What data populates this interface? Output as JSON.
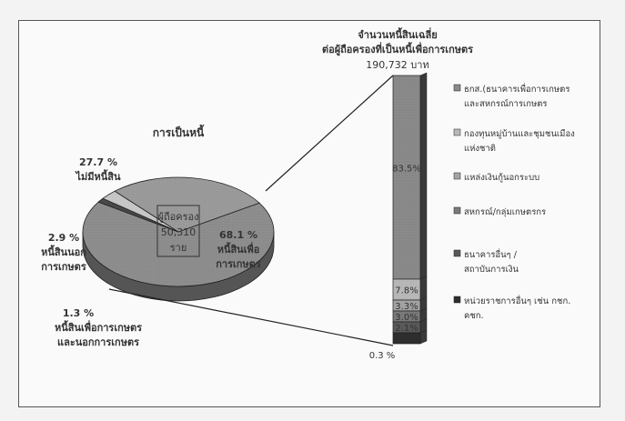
{
  "chart_data": [
    {
      "type": "pie",
      "title": "การเป็นหนี้",
      "center_label": {
        "line1": "ผู้ถือครอง",
        "line2": "50,310",
        "line3": "ราย"
      },
      "slices": [
        {
          "line1": "68.1 %",
          "line2": "หนี้สินเพื่อ",
          "line3": "การเกษตร",
          "value": 68.1
        },
        {
          "line1": "27.7 %",
          "line2": "ไม่มีหนี้สิน",
          "line3": "",
          "value": 27.7
        },
        {
          "line1": "2.9 %",
          "line2": "หนี้สินนอก",
          "line3": "การเกษตร",
          "value": 2.9
        },
        {
          "line1": "1.3 %",
          "line2": "หนี้สินเพื่อการเกษตร",
          "line3": "และนอกการเกษตร",
          "value": 1.3
        }
      ]
    },
    {
      "type": "bar",
      "stacked": true,
      "title_line1": "จำนวนหนี้สินเฉลี่ย",
      "title_line2": "ต่อผู้ถือครองที่เป็นหนี้เพื่อการเกษตร",
      "total_label": "190,732 บาท",
      "segments": [
        {
          "name": "ธกส.(ธนาคารเพื่อการเกษตร และสหกรณ์การเกษตร",
          "label": "83.5%",
          "value": 83.5,
          "color": "#8a8a8a"
        },
        {
          "name": "กองทุนหมู่บ้านและชุมชนเมือง แห่งชาติ",
          "label": "7.8%",
          "value": 7.8,
          "color": "#b9b9b9"
        },
        {
          "name": "แหล่งเงินกู้นอกระบบ",
          "label": "3.3%",
          "value": 3.3,
          "color": "#a4a4a4"
        },
        {
          "name": "สหกรณ์/กลุ่มเกษตรกร",
          "label": "3.0%",
          "value": 3.0,
          "color": "#7a7a7a"
        },
        {
          "name": "ธนาคารอื่นๆ / สถาบันการเงิน",
          "label": "2.1%",
          "value": 2.1,
          "color": "#5a5a5a"
        },
        {
          "name": "หน่วยราชการอื่นๆ เช่น กชก. คชก.",
          "label": "0.3 %",
          "value": 0.3,
          "color": "#2e2e2e"
        }
      ],
      "legend_position": "right"
    }
  ]
}
